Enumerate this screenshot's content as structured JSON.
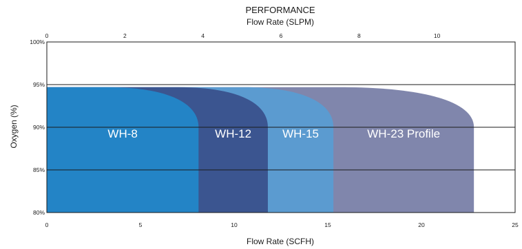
{
  "chart_data": {
    "type": "area",
    "title": "PERFORMANCE",
    "top_axis": {
      "label": "Flow Rate (SLPM)",
      "range": [
        0,
        12
      ],
      "ticks": [
        0,
        2,
        4,
        6,
        8,
        10
      ]
    },
    "xlabel": "Flow Rate (SCFH)",
    "xlim": [
      0,
      25
    ],
    "x_ticks": [
      0,
      5,
      10,
      15,
      20,
      25
    ],
    "ylabel": "Oxygen (%)",
    "ylim": [
      80,
      100
    ],
    "y_ticks": [
      {
        "value": 100,
        "label": "100%"
      },
      {
        "value": 95,
        "label": "95%"
      },
      {
        "value": 90,
        "label": "90%"
      },
      {
        "value": 85,
        "label": "85%"
      },
      {
        "value": 80,
        "label": "80%"
      }
    ],
    "grid": {
      "horizontal": true,
      "vertical": false
    },
    "series": [
      {
        "name": "WH-23 Profile",
        "max_flow_scfh": 22.8,
        "plateau_oxygen": 94.7,
        "end_oxygen": 90.0,
        "knee_start_scfh": 15.6,
        "color": "#8086ac"
      },
      {
        "name": "WH-15",
        "max_flow_scfh": 15.3,
        "plateau_oxygen": 94.7,
        "end_oxygen": 90.0,
        "knee_start_scfh": 10.5,
        "color": "#5b9bd0"
      },
      {
        "name": "WH-12",
        "max_flow_scfh": 11.8,
        "plateau_oxygen": 94.7,
        "end_oxygen": 90.0,
        "knee_start_scfh": 7.0,
        "color": "#3b5590"
      },
      {
        "name": "WH-8",
        "max_flow_scfh": 8.1,
        "plateau_oxygen": 94.7,
        "end_oxygen": 90.0,
        "knee_start_scfh": 3.2,
        "color": "#2384c6"
      }
    ]
  }
}
